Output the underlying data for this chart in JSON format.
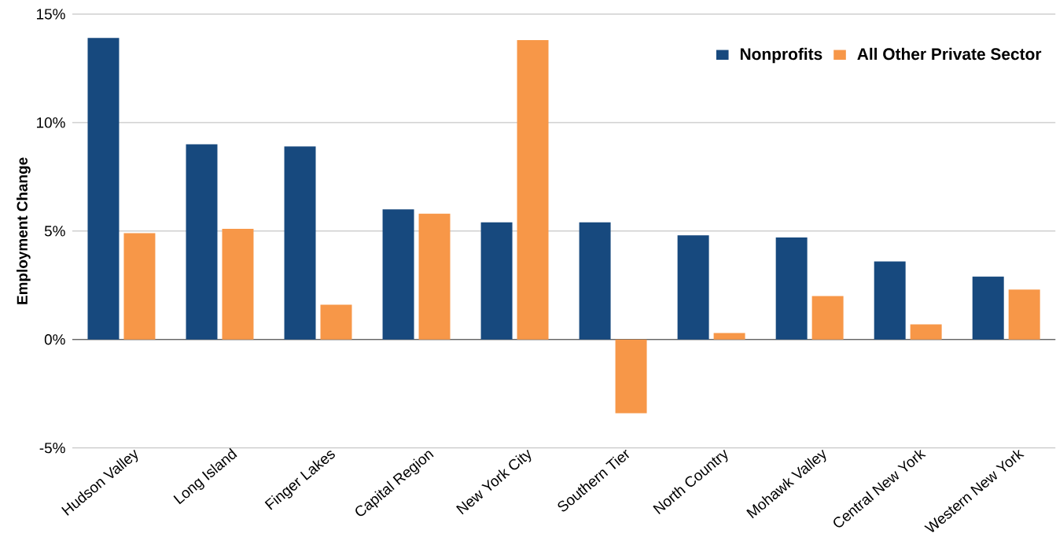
{
  "chart_data": {
    "type": "bar",
    "ylabel": "Employment Change",
    "categories": [
      "Hudson Valley",
      "Long Island",
      "Finger Lakes",
      "Capital Region",
      "New York City",
      "Southern Tier",
      "North Country",
      "Mohawk Valley",
      "Central New York",
      "Western New York"
    ],
    "series": [
      {
        "name": "Nonprofits",
        "color": "#17497e",
        "values": [
          13.9,
          9.0,
          8.9,
          6.0,
          5.4,
          5.4,
          4.8,
          4.7,
          3.6,
          2.9
        ]
      },
      {
        "name": "All Other Private Sector",
        "color": "#f79748",
        "values": [
          4.9,
          5.1,
          1.6,
          5.8,
          13.8,
          -3.4,
          0.3,
          2.0,
          0.7,
          2.3
        ]
      }
    ],
    "ylim": [
      -5,
      15
    ],
    "yticks": [
      {
        "value": -5,
        "label": "-5%"
      },
      {
        "value": 0,
        "label": "0%"
      },
      {
        "value": 5,
        "label": "5%"
      },
      {
        "value": 10,
        "label": "10%"
      },
      {
        "value": 15,
        "label": "15%"
      }
    ],
    "grid": "y",
    "legend": "top right"
  }
}
